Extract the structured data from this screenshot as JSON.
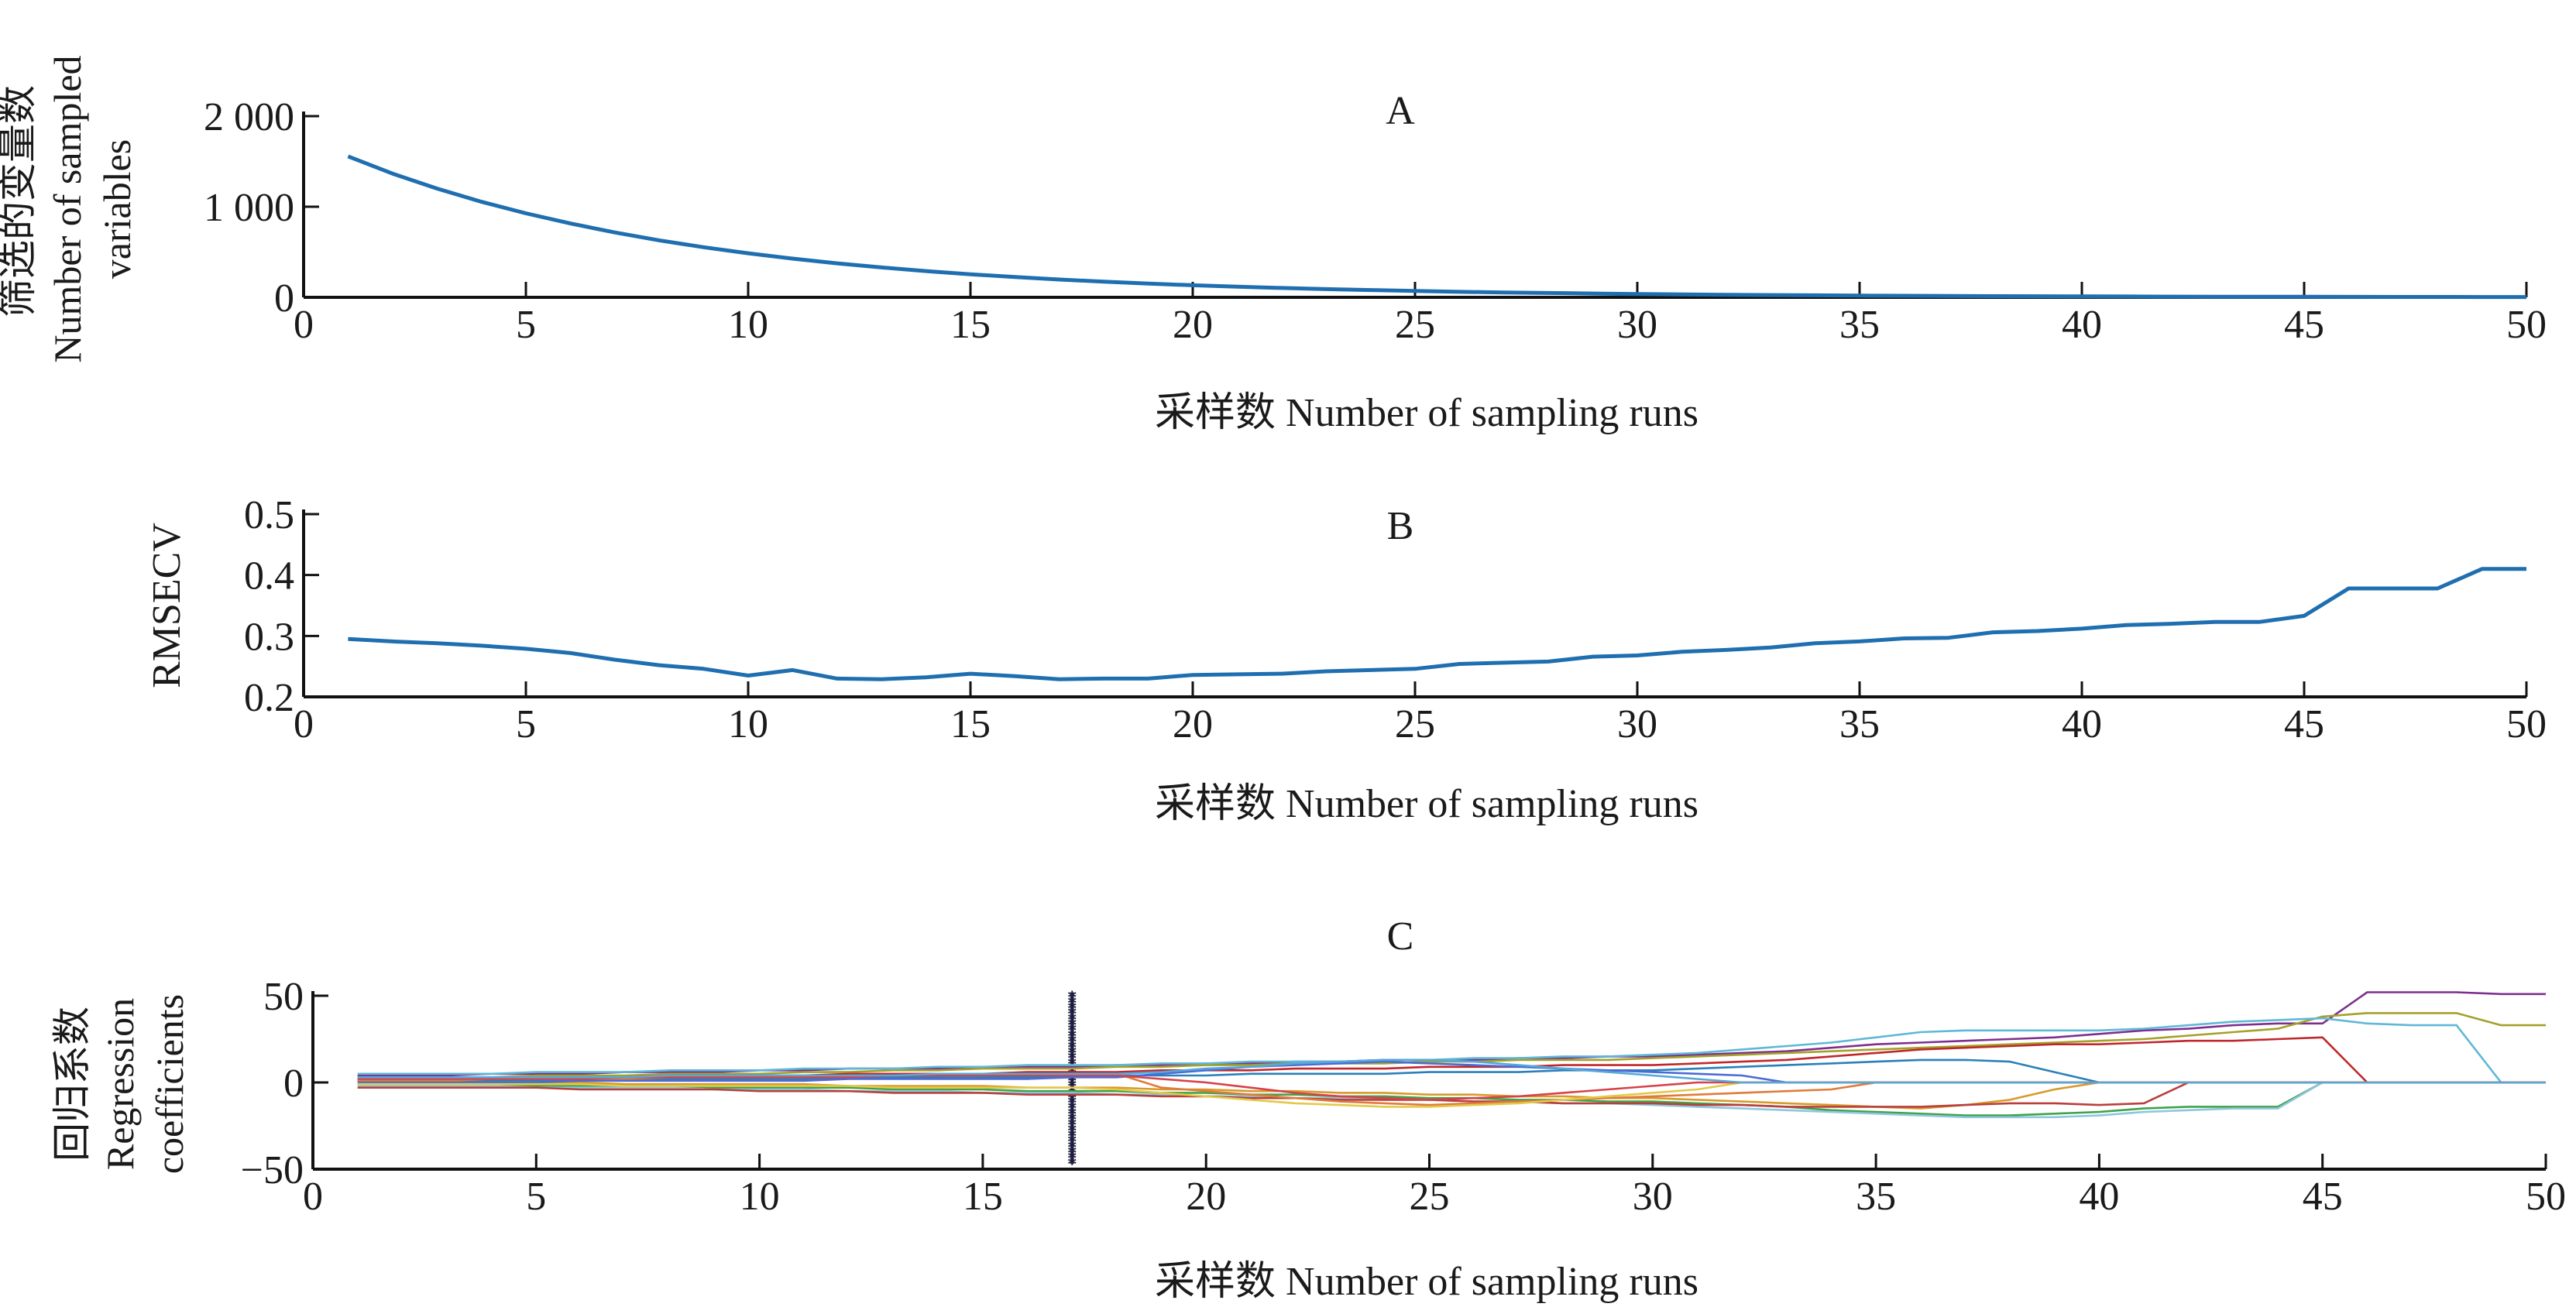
{
  "chart_data": [
    {
      "type": "line",
      "title": "A",
      "xlabel": "采样数 Number of sampling runs",
      "ylabel": [
        "筛选的变量数",
        "Number of sampled",
        "variables"
      ],
      "xlim": [
        0,
        50
      ],
      "ylim": [
        0,
        2000
      ],
      "x_ticks": [
        0,
        5,
        10,
        15,
        20,
        25,
        30,
        35,
        40,
        45,
        50
      ],
      "y_ticks": [
        0,
        1000,
        2000
      ],
      "y_tick_labels": [
        "0",
        "1 000",
        "2 000"
      ],
      "grid": false,
      "series": [
        {
          "color": "#1f6fb0",
          "x": [
            1,
            2,
            3,
            4,
            5,
            6,
            7,
            8,
            9,
            10,
            11,
            12,
            13,
            14,
            15,
            16,
            17,
            18,
            19,
            20,
            21,
            22,
            23,
            24,
            25,
            26,
            27,
            28,
            29,
            30,
            31,
            32,
            33,
            34,
            35,
            36,
            37,
            38,
            39,
            40,
            41,
            42,
            43,
            44,
            45,
            46,
            47,
            48,
            49,
            50
          ],
          "values": [
            1556,
            1366,
            1201,
            1055,
            927,
            815,
            716,
            629,
            553,
            486,
            427,
            375,
            330,
            290,
            255,
            224,
            197,
            173,
            152,
            133,
            117,
            103,
            91,
            80,
            70,
            61,
            54,
            48,
            42,
            37,
            32,
            28,
            25,
            22,
            19,
            17,
            15,
            13,
            12,
            10,
            9,
            8,
            7,
            6,
            6,
            5,
            4,
            4,
            3,
            3
          ]
        }
      ]
    },
    {
      "type": "line",
      "title": "B",
      "xlabel": "采样数 Number of sampling runs",
      "ylabel": "RMSECV",
      "xlim": [
        0,
        50
      ],
      "ylim": [
        0.2,
        0.5
      ],
      "x_ticks": [
        0,
        5,
        10,
        15,
        20,
        25,
        30,
        35,
        40,
        45,
        50
      ],
      "y_ticks": [
        0.2,
        0.3,
        0.4,
        0.5
      ],
      "y_tick_labels": [
        "0.2",
        "0.3",
        "0.4",
        "0.5"
      ],
      "grid": false,
      "series": [
        {
          "color": "#1f6fb0",
          "x": [
            1,
            2,
            3,
            4,
            5,
            6,
            7,
            8,
            9,
            10,
            11,
            12,
            13,
            14,
            15,
            16,
            17,
            18,
            19,
            20,
            21,
            22,
            23,
            24,
            25,
            26,
            27,
            28,
            29,
            30,
            31,
            32,
            33,
            34,
            35,
            36,
            37,
            38,
            39,
            40,
            41,
            42,
            43,
            44,
            45,
            46,
            47,
            48,
            49,
            50
          ],
          "values": [
            0.295,
            0.291,
            0.288,
            0.284,
            0.279,
            0.272,
            0.261,
            0.252,
            0.246,
            0.235,
            0.244,
            0.23,
            0.229,
            0.232,
            0.238,
            0.234,
            0.229,
            0.23,
            0.23,
            0.236,
            0.237,
            0.238,
            0.242,
            0.244,
            0.246,
            0.254,
            0.256,
            0.258,
            0.266,
            0.268,
            0.274,
            0.277,
            0.281,
            0.288,
            0.291,
            0.296,
            0.297,
            0.306,
            0.308,
            0.312,
            0.318,
            0.32,
            0.323,
            0.323,
            0.333,
            0.378,
            0.378,
            0.378,
            0.41,
            0.41
          ]
        }
      ]
    },
    {
      "type": "line",
      "title": "C",
      "xlabel": "采样数 Number of sampling runs",
      "ylabel": [
        "回归系数",
        "Regression",
        "coefficients"
      ],
      "xlim": [
        0,
        50
      ],
      "ylim": [
        -50,
        50
      ],
      "x_ticks": [
        0,
        5,
        10,
        15,
        20,
        25,
        30,
        35,
        40,
        45,
        50
      ],
      "y_ticks": [
        -50,
        0,
        50
      ],
      "y_tick_labels": [
        "−50",
        "0",
        "50"
      ],
      "grid": false,
      "marker_line": {
        "x": 17,
        "ymin": -47,
        "ymax": 52,
        "color": "#2a2a8a",
        "marker": "*"
      },
      "x": [
        1,
        2,
        3,
        4,
        5,
        6,
        7,
        8,
        9,
        10,
        11,
        12,
        13,
        14,
        15,
        16,
        17,
        18,
        19,
        20,
        21,
        22,
        23,
        24,
        25,
        26,
        27,
        28,
        29,
        30,
        31,
        32,
        33,
        34,
        35,
        36,
        37,
        38,
        39,
        40,
        41,
        42,
        43,
        44,
        45,
        46,
        47,
        48,
        49,
        50
      ],
      "series": [
        {
          "color": "#7e2f8e",
          "values": [
            4,
            4,
            4,
            5,
            5,
            5,
            6,
            6,
            6,
            7,
            7,
            8,
            8,
            8,
            9,
            9,
            9,
            10,
            10,
            11,
            11,
            12,
            12,
            13,
            13,
            13,
            14,
            14,
            15,
            15,
            16,
            17,
            18,
            20,
            22,
            23,
            24,
            25,
            26,
            28,
            30,
            31,
            33,
            34,
            34,
            52,
            52,
            52,
            51,
            51
          ]
        },
        {
          "color": "#a4a12a",
          "values": [
            3,
            3,
            3,
            3,
            4,
            4,
            4,
            5,
            5,
            5,
            6,
            6,
            7,
            7,
            8,
            8,
            8,
            9,
            9,
            10,
            10,
            11,
            11,
            11,
            12,
            12,
            13,
            13,
            13,
            14,
            15,
            16,
            17,
            18,
            19,
            20,
            21,
            22,
            23,
            24,
            25,
            27,
            29,
            31,
            38,
            40,
            40,
            40,
            33,
            33
          ]
        },
        {
          "color": "#5fb8d6",
          "values": [
            5,
            5,
            5,
            5,
            6,
            6,
            6,
            7,
            7,
            7,
            8,
            8,
            8,
            9,
            9,
            10,
            10,
            10,
            11,
            11,
            12,
            12,
            12,
            13,
            13,
            14,
            14,
            15,
            15,
            16,
            17,
            19,
            21,
            23,
            26,
            29,
            30,
            30,
            30,
            30,
            31,
            33,
            35,
            36,
            37,
            34,
            33,
            33,
            0,
            0
          ]
        },
        {
          "color": "#c0282d",
          "values": [
            2,
            2,
            2,
            3,
            3,
            3,
            3,
            4,
            4,
            4,
            4,
            5,
            5,
            5,
            5,
            6,
            6,
            6,
            7,
            7,
            7,
            8,
            8,
            8,
            9,
            9,
            9,
            10,
            10,
            10,
            11,
            12,
            13,
            15,
            17,
            19,
            20,
            21,
            22,
            22,
            23,
            24,
            24,
            25,
            26,
            0,
            0,
            0,
            0,
            0
          ]
        },
        {
          "color": "#2a80b9",
          "values": [
            1,
            1,
            1,
            1,
            1,
            2,
            2,
            2,
            2,
            2,
            2,
            3,
            3,
            3,
            3,
            3,
            4,
            4,
            4,
            4,
            5,
            5,
            5,
            5,
            6,
            6,
            6,
            7,
            7,
            7,
            8,
            9,
            10,
            11,
            12,
            13,
            13,
            12,
            6,
            0,
            0,
            0,
            0,
            0,
            0,
            0,
            0,
            0,
            0,
            0
          ]
        },
        {
          "color": "#d89a2b",
          "values": [
            0,
            0,
            0,
            0,
            0,
            0,
            -1,
            -1,
            -1,
            -1,
            -1,
            -2,
            -2,
            -2,
            -2,
            -3,
            -3,
            -3,
            -4,
            -4,
            -5,
            -5,
            -6,
            -6,
            -7,
            -7,
            -8,
            -8,
            -9,
            -9,
            -10,
            -11,
            -12,
            -13,
            -14,
            -15,
            -13,
            -10,
            -4,
            0,
            0,
            0,
            0,
            0,
            0,
            0,
            0,
            0,
            0,
            0
          ]
        },
        {
          "color": "#3ea34a",
          "values": [
            -1,
            -1,
            -1,
            -1,
            -2,
            -2,
            -2,
            -2,
            -3,
            -3,
            -3,
            -3,
            -4,
            -4,
            -4,
            -5,
            -5,
            -5,
            -6,
            -6,
            -7,
            -7,
            -8,
            -8,
            -9,
            -9,
            -10,
            -10,
            -11,
            -11,
            -12,
            -13,
            -14,
            -16,
            -17,
            -18,
            -19,
            -19,
            -18,
            -17,
            -15,
            -14,
            -14,
            -14,
            0,
            0,
            0,
            0,
            0,
            0
          ]
        },
        {
          "color": "#8fc6dd",
          "values": [
            -2,
            -2,
            -2,
            -2,
            -3,
            -3,
            -3,
            -3,
            -4,
            -4,
            -4,
            -5,
            -5,
            -5,
            -6,
            -6,
            -6,
            -7,
            -7,
            -8,
            -8,
            -9,
            -9,
            -10,
            -10,
            -11,
            -11,
            -12,
            -12,
            -13,
            -14,
            -15,
            -16,
            -17,
            -18,
            -19,
            -20,
            -20,
            -20,
            -19,
            -17,
            -16,
            -15,
            -15,
            0,
            0,
            0,
            0,
            0,
            0
          ]
        },
        {
          "color": "#b8403c",
          "values": [
            -3,
            -3,
            -3,
            -3,
            -3,
            -4,
            -4,
            -4,
            -4,
            -5,
            -5,
            -5,
            -6,
            -6,
            -6,
            -7,
            -7,
            -7,
            -8,
            -8,
            -9,
            -9,
            -10,
            -10,
            -10,
            -11,
            -11,
            -12,
            -12,
            -12,
            -13,
            -13,
            -14,
            -14,
            -14,
            -14,
            -13,
            -12,
            -12,
            -13,
            -12,
            0,
            0,
            0,
            0,
            0,
            0,
            0,
            0,
            0
          ]
        },
        {
          "color": "#e07b39",
          "values": [
            1,
            1,
            1,
            2,
            2,
            2,
            2,
            3,
            3,
            3,
            3,
            4,
            4,
            4,
            4,
            5,
            5,
            5,
            -3,
            -5,
            -7,
            -9,
            -11,
            -12,
            -13,
            -12,
            -11,
            -10,
            -9,
            -8,
            -7,
            -6,
            -5,
            -4,
            0,
            0,
            0,
            0,
            0,
            0,
            0,
            0,
            0,
            0,
            0,
            0,
            0,
            0,
            0,
            0
          ]
        },
        {
          "color": "#4b6bd6",
          "values": [
            0,
            0,
            0,
            0,
            0,
            1,
            1,
            1,
            1,
            1,
            1,
            2,
            2,
            2,
            2,
            2,
            3,
            3,
            5,
            7,
            9,
            10,
            11,
            12,
            11,
            10,
            9,
            8,
            7,
            6,
            5,
            4,
            0,
            0,
            0,
            0,
            0,
            0,
            0,
            0,
            0,
            0,
            0,
            0,
            0,
            0,
            0,
            0,
            0,
            0
          ]
        },
        {
          "color": "#e2c94a",
          "values": [
            -1,
            -1,
            -1,
            -1,
            -1,
            -1,
            -2,
            -2,
            -2,
            -2,
            -2,
            -2,
            -3,
            -3,
            -3,
            -3,
            -3,
            -4,
            -6,
            -8,
            -10,
            -12,
            -13,
            -14,
            -14,
            -13,
            -12,
            -10,
            -8,
            -6,
            -4,
            0,
            0,
            0,
            0,
            0,
            0,
            0,
            0,
            0,
            0,
            0,
            0,
            0,
            0,
            0,
            0,
            0,
            0,
            0
          ]
        },
        {
          "color": "#d6424a",
          "values": [
            2,
            2,
            2,
            2,
            2,
            2,
            3,
            3,
            3,
            3,
            3,
            3,
            4,
            4,
            4,
            4,
            4,
            4,
            2,
            0,
            -3,
            -6,
            -8,
            -9,
            -10,
            -9,
            -8,
            -6,
            -4,
            -2,
            0,
            0,
            0,
            0,
            0,
            0,
            0,
            0,
            0,
            0,
            0,
            0,
            0,
            0,
            0,
            0,
            0,
            0,
            0,
            0
          ]
        },
        {
          "color": "#56a8d8",
          "values": [
            3,
            3,
            3,
            3,
            3,
            3,
            3,
            4,
            4,
            4,
            4,
            4,
            4,
            5,
            5,
            5,
            5,
            5,
            6,
            8,
            9,
            11,
            12,
            13,
            13,
            12,
            10,
            8,
            6,
            4,
            2,
            0,
            0,
            0,
            0,
            0,
            0,
            0,
            0,
            0,
            0,
            0,
            0,
            0,
            0,
            0,
            0,
            0,
            0,
            0
          ]
        }
      ]
    }
  ]
}
